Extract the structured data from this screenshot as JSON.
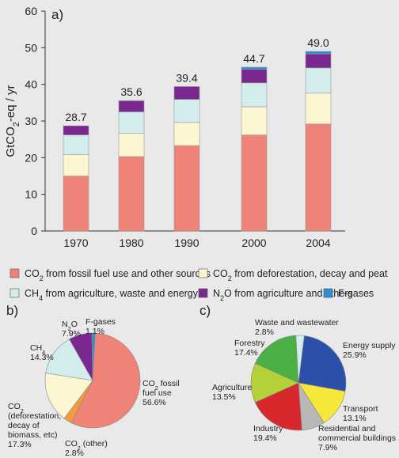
{
  "chart_data": [
    {
      "type": "bar",
      "stacked": true,
      "panel_label": "a)",
      "ylabel": "GtCO2-eq / yr",
      "ylim": [
        0,
        60
      ],
      "yticks": [
        0,
        10,
        20,
        30,
        40,
        50,
        60
      ],
      "categories": [
        "1970",
        "1980",
        "1990",
        "2000",
        "2004"
      ],
      "totals": [
        "28.7",
        "35.6",
        "39.4",
        "44.7",
        "49.0"
      ],
      "series": [
        {
          "name": "CO2 from fossil fuel use and other sources",
          "color": "#f08378",
          "values": [
            15.0,
            20.3,
            23.3,
            26.2,
            29.2
          ]
        },
        {
          "name": "CO2 from deforestation, decay and peat",
          "color": "#fcf7d2",
          "values": [
            5.8,
            6.3,
            6.3,
            7.7,
            8.4
          ]
        },
        {
          "name": "CH4 from agriculture, waste and energy",
          "color": "#d3ecec",
          "values": [
            5.4,
            5.9,
            6.3,
            6.5,
            6.9
          ]
        },
        {
          "name": "N2O from agriculture and others",
          "color": "#7a2790",
          "values": [
            2.5,
            3.0,
            3.5,
            3.7,
            3.8
          ]
        },
        {
          "name": "F-gases",
          "color": "#2a8fd8",
          "values": [
            0.0,
            0.1,
            0.0,
            0.6,
            0.7
          ]
        }
      ],
      "legend": [
        {
          "pre": "CO",
          "sub": "2",
          "post": " from fossil fuel use and other sources",
          "color": "#f08378"
        },
        {
          "pre": "CO",
          "sub": "2",
          "post": " from deforestation, decay and peat",
          "color": "#fcf7d2"
        },
        {
          "pre": "CH",
          "sub": "4",
          "post": " from agriculture, waste and energy",
          "color": "#d3ecec"
        },
        {
          "pre": "N",
          "sub": "2",
          "post": "O from agriculture and others",
          "color": "#7a2790"
        },
        {
          "pre": "F-gases",
          "sub": "",
          "post": "",
          "color": "#2a8fd8"
        }
      ]
    },
    {
      "type": "pie",
      "panel_label": "b)",
      "slices": [
        {
          "label": [
            "CO2 fossil",
            "fuel use",
            "56.6%"
          ],
          "value": 56.6,
          "color": "#f08378"
        },
        {
          "label": [
            "CO2 (other)",
            "2.8%"
          ],
          "value": 2.8,
          "color": "#f39a3c"
        },
        {
          "label": [
            "CO2",
            "(deforestation,",
            "decay of",
            "biomass, etc)",
            "17.3%"
          ],
          "value": 17.3,
          "color": "#fcf7d2"
        },
        {
          "label": [
            "CH4",
            "14.3%"
          ],
          "value": 14.3,
          "color": "#d3ecec"
        },
        {
          "label": [
            "N2O",
            "7.9%"
          ],
          "value": 7.9,
          "color": "#7a2790"
        },
        {
          "label": [
            "F-gases",
            "1.1%"
          ],
          "value": 1.1,
          "color": "#2a8fd8"
        }
      ]
    },
    {
      "type": "pie",
      "panel_label": "c)",
      "slices": [
        {
          "label": [
            "Energy supply",
            "25.9%"
          ],
          "value": 25.9,
          "color": "#2a50a8"
        },
        {
          "label": [
            "Transport",
            "13.1%"
          ],
          "value": 13.1,
          "color": "#f5e83a"
        },
        {
          "label": [
            "Residential and",
            "commercial buildings",
            "7.9%"
          ],
          "value": 7.9,
          "color": "#b8b8b8"
        },
        {
          "label": [
            "Industry",
            "19.4%"
          ],
          "value": 19.4,
          "color": "#d8282e"
        },
        {
          "label": [
            "Agriculture",
            "13.5%"
          ],
          "value": 13.5,
          "color": "#b5d13a"
        },
        {
          "label": [
            "Forestry",
            "17.4%"
          ],
          "value": 17.4,
          "color": "#4ab043"
        },
        {
          "label": [
            "Waste and wastewater",
            "2.8%"
          ],
          "value": 2.8,
          "color": "#d3ecec"
        }
      ]
    }
  ]
}
